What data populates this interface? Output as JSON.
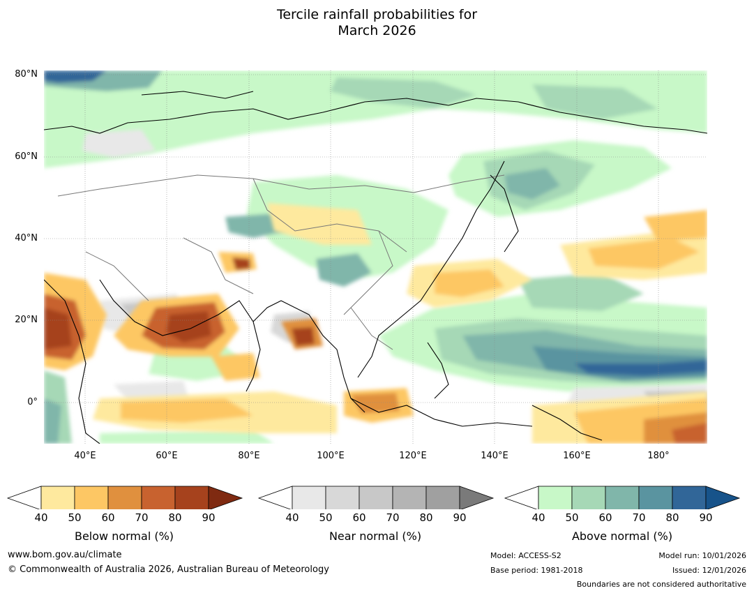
{
  "title": {
    "line1": "Tercile rainfall probabilities for",
    "line2": "March 2026"
  },
  "map": {
    "lat_labels": [
      "80°N",
      "60°N",
      "40°N",
      "20°N",
      "0°"
    ],
    "lon_labels": [
      "40°E",
      "60°E",
      "80°E",
      "100°E",
      "120°E",
      "140°E",
      "160°E",
      "180°"
    ],
    "extent": {
      "lon_min": 30,
      "lon_max": 192,
      "lat_min": -10,
      "lat_max": 81
    }
  },
  "colorbars": [
    {
      "name": "below",
      "title": "Below normal (%)",
      "ticks": [
        "40",
        "50",
        "60",
        "70",
        "80",
        "90"
      ],
      "colors": [
        "#ffffff",
        "#fee99e",
        "#fdc764",
        "#e0903e",
        "#c8622f",
        "#a6421d",
        "#7f2a11"
      ]
    },
    {
      "name": "near",
      "title": "Near normal (%)",
      "ticks": [
        "40",
        "50",
        "60",
        "70",
        "80",
        "90"
      ],
      "colors": [
        "#ffffff",
        "#e8e8e8",
        "#d8d8d8",
        "#c8c8c8",
        "#b4b4b4",
        "#a0a0a0",
        "#7a7a7a"
      ]
    },
    {
      "name": "above",
      "title": "Above normal (%)",
      "ticks": [
        "40",
        "50",
        "60",
        "70",
        "80",
        "90"
      ],
      "colors": [
        "#ffffff",
        "#c8f8c8",
        "#a6d8b6",
        "#80b6aa",
        "#5a94a0",
        "#316698",
        "#17538a"
      ]
    }
  ],
  "footer": {
    "website": "www.bom.gov.au/climate",
    "copyright": "© Commonwealth of Australia 2026, Australian Bureau of Meteorology",
    "model": "Model: ACCESS-S2",
    "base_period": "Base period: 1981-2018",
    "model_run": "Model run: 10/01/2026",
    "issued": "Issued: 12/01/2026",
    "disclaimer": "Boundaries are not considered authoritative"
  }
}
